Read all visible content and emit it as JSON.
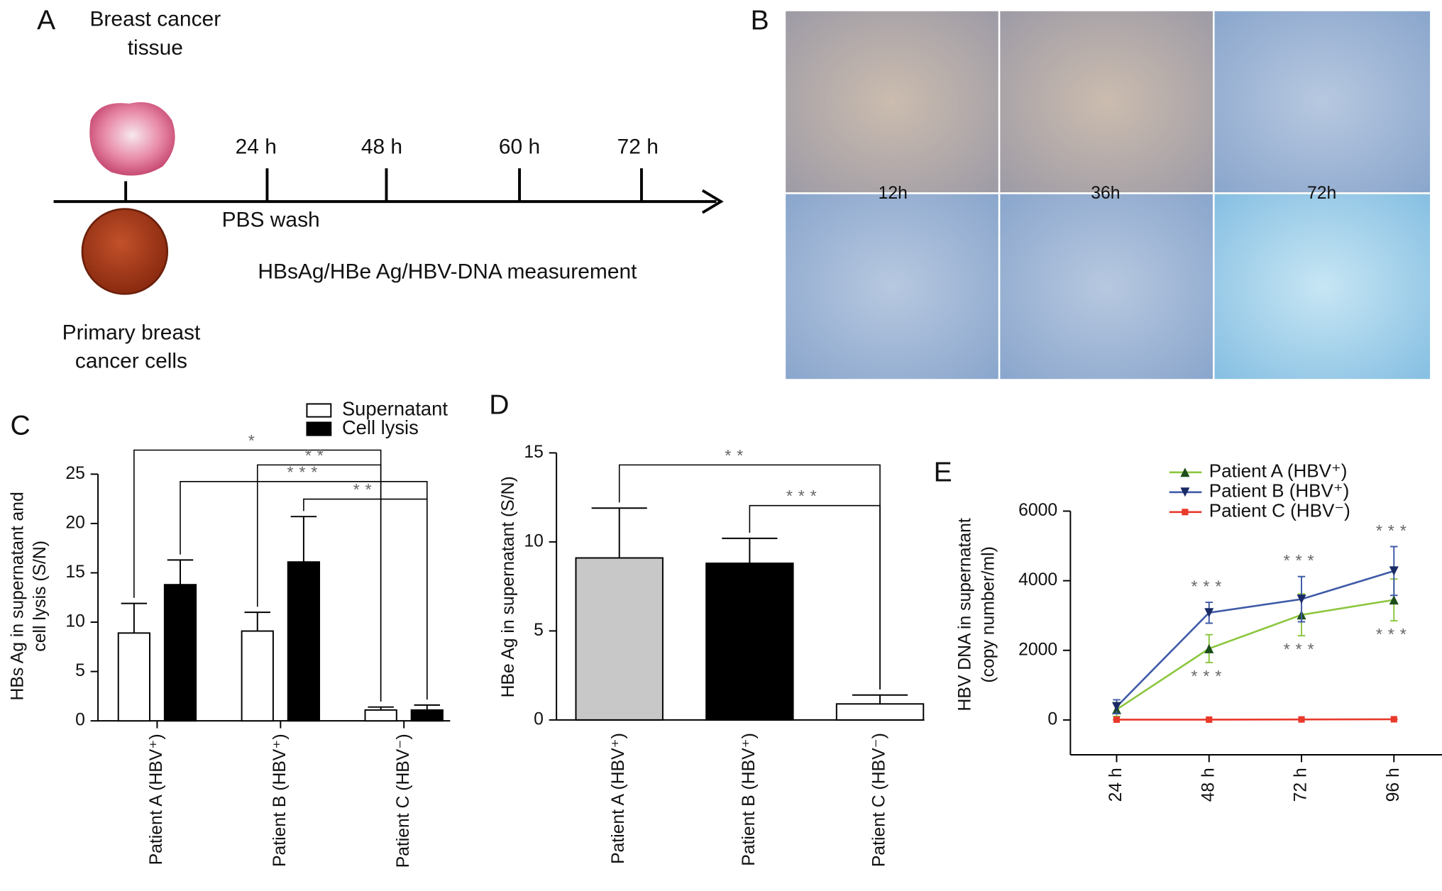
{
  "panel_a": {
    "label": "A",
    "tissue_label": [
      "Breast cancer",
      "tissue"
    ],
    "timepoints": [
      "24 h",
      "48 h",
      "60 h",
      "72 h"
    ],
    "wash_label": "PBS wash",
    "measurement_label": "HBsAg/HBe Ag/HBV-DNA measurement",
    "cells_label": [
      "Primary breast",
      "cancer cells"
    ]
  },
  "panel_b": {
    "label": "B",
    "time_labels": [
      "12h",
      "36h",
      "72h"
    ]
  },
  "chart_data": [
    {
      "label": "C",
      "type": "grouped_bar",
      "ylabel": [
        "HBs Ag in supernatant and",
        "cell lysis (S/N)"
      ],
      "categories": [
        "Patient A (HBV⁺)",
        "Patient B (HBV⁺)",
        "Patient C (HBV⁻)"
      ],
      "series": [
        {
          "name": "Supernatant",
          "color": "#ffffff",
          "values": [
            8.9,
            9.1,
            1.1
          ],
          "errors": [
            3.0,
            1.9,
            0.3
          ]
        },
        {
          "name": "Cell lysis",
          "color": "#000000",
          "values": [
            13.8,
            16.1,
            1.1
          ],
          "errors": [
            2.5,
            4.6,
            0.5
          ]
        }
      ],
      "ylim": [
        0,
        25
      ],
      "yticks": [
        0,
        5,
        10,
        15,
        20,
        25
      ],
      "significance": [
        "*",
        "**",
        "***",
        "**"
      ]
    },
    {
      "label": "D",
      "type": "bar",
      "ylabel": [
        "HBe Ag in supernatant (S/N)"
      ],
      "categories": [
        "Patient A (HBV⁺)",
        "Patient B (HBV⁺)",
        "Patient C (HBV⁻)"
      ],
      "values": [
        9.1,
        8.8,
        0.9
      ],
      "errors": [
        2.8,
        1.4,
        0.5
      ],
      "colors": [
        "#c8c8c8",
        "#000000",
        "#ffffff"
      ],
      "ylim": [
        0,
        15
      ],
      "yticks": [
        0,
        5,
        10,
        15
      ],
      "significance": [
        "**",
        "***"
      ]
    },
    {
      "label": "E",
      "type": "line",
      "ylabel": [
        "HBV DNA in supernatant",
        "(copy number/ml)"
      ],
      "categories": [
        "24 h",
        "48 h",
        "72 h",
        "96 h"
      ],
      "series": [
        {
          "name": "Patient A (HBV⁺)",
          "color": "#8cc63f",
          "marker": "triangle-up",
          "values": [
            300,
            2050,
            3020,
            3450
          ],
          "errors": [
            200,
            400,
            600,
            600
          ]
        },
        {
          "name": "Patient B (HBV⁺)",
          "color": "#3f5aa8",
          "marker": "triangle-down",
          "values": [
            380,
            3080,
            3470,
            4280
          ],
          "errors": [
            200,
            300,
            650,
            700
          ]
        },
        {
          "name": "Patient C (HBV⁻)",
          "color": "#e8392b",
          "marker": "square",
          "values": [
            10,
            10,
            15,
            20
          ],
          "errors": [
            5,
            5,
            5,
            5
          ]
        }
      ],
      "ylim": [
        -1000,
        6000
      ],
      "yticks": [
        0,
        2000,
        4000,
        6000
      ],
      "annotations": [
        "***",
        "***",
        "***",
        "***",
        "***",
        "***"
      ]
    }
  ]
}
